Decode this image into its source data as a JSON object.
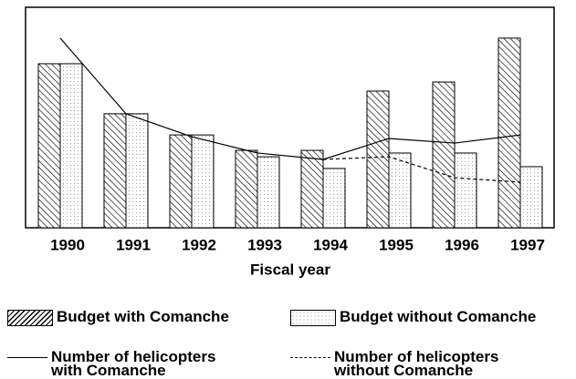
{
  "chart_data": {
    "type": "bar",
    "x_label": "Fiscal year",
    "categories": [
      "1990",
      "1991",
      "1992",
      "1993",
      "1994",
      "1995",
      "1996",
      "1997"
    ],
    "ylim": [
      0,
      100
    ],
    "series": [
      {
        "name": "Budget with Comanche",
        "mark": "bar",
        "style": "hatch",
        "color": "#000000",
        "values": [
          74.4,
          51.7,
          42.1,
          35.1,
          35.1,
          62.0,
          66.1,
          86.0
        ]
      },
      {
        "name": "Budget without Comanche",
        "mark": "bar",
        "style": "dots",
        "color": "#000000",
        "values": [
          74.4,
          51.7,
          42.1,
          32.2,
          26.9,
          33.9,
          33.9,
          27.7
        ]
      },
      {
        "name": "Number of helicopters with Comanche",
        "mark": "line",
        "style": "solid",
        "color": "#000000",
        "values": [
          86.0,
          51.7,
          41.3,
          33.9,
          31.0,
          40.5,
          38.4,
          42.1
        ]
      },
      {
        "name": "Number of helicopters without Comanche",
        "mark": "line",
        "style": "dashed",
        "color": "#000000",
        "values": [
          null,
          null,
          null,
          null,
          31.0,
          32.2,
          22.7,
          20.7
        ]
      }
    ]
  }
}
